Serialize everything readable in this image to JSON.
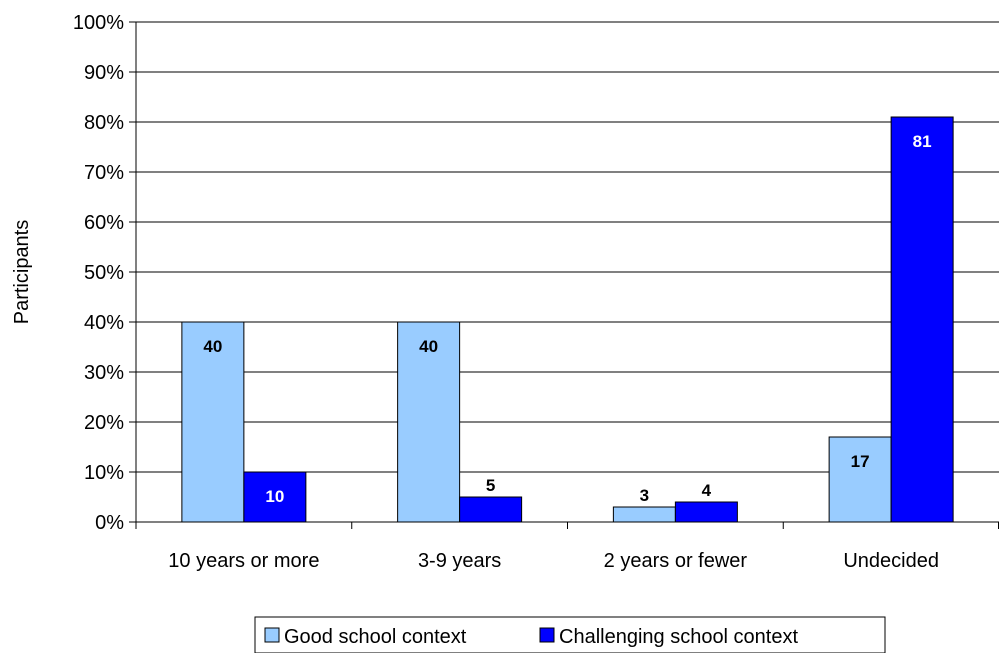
{
  "chart_data": {
    "type": "bar",
    "title": "",
    "xlabel": "",
    "ylabel": "Participants",
    "ylim": [
      0,
      100
    ],
    "yticks": [
      "0%",
      "10%",
      "20%",
      "30%",
      "40%",
      "50%",
      "60%",
      "70%",
      "80%",
      "90%",
      "100%"
    ],
    "categories": [
      "10 years or more",
      "3-9 years",
      "2 years or fewer",
      "Undecided"
    ],
    "series": [
      {
        "name": "Good school context",
        "values": [
          40,
          40,
          3,
          17
        ],
        "color": "#99ccff"
      },
      {
        "name": "Challenging school context",
        "values": [
          10,
          5,
          4,
          81
        ],
        "color": "#0000ff"
      }
    ],
    "data_labels": true,
    "grid": true,
    "legend_position": "bottom"
  }
}
